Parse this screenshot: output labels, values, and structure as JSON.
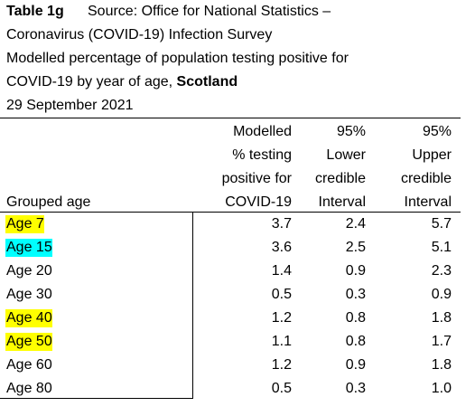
{
  "header": {
    "table_label": "Table 1g",
    "source": "Source: Office for National Statistics –",
    "survey": "Coronavirus (COVID-19) Infection Survey",
    "description_1": "Modelled percentage of population testing positive for",
    "description_2": "COVID-19 by year of age,",
    "region": "Scotland",
    "date": "29 September 2021"
  },
  "table": {
    "columns": [
      [
        "Grouped age"
      ],
      [
        "Modelled",
        "% testing",
        "positive for",
        "COVID-19"
      ],
      [
        "95%",
        "Lower",
        "credible",
        "Interval"
      ],
      [
        "95%",
        "Upper",
        "credible",
        "Interval"
      ]
    ],
    "rows": [
      {
        "label": "Age 7",
        "highlight": "#ffff00",
        "values": [
          "3.7",
          "2.4",
          "5.7"
        ]
      },
      {
        "label": "Age 15",
        "highlight": "#00ffff",
        "values": [
          "3.6",
          "2.5",
          "5.1"
        ]
      },
      {
        "label": "Age 20",
        "values": [
          "1.4",
          "0.9",
          "2.3"
        ]
      },
      {
        "label": "Age 30",
        "values": [
          "0.5",
          "0.3",
          "0.9"
        ]
      },
      {
        "label": "Age 40",
        "highlight": "#ffff00",
        "values": [
          "1.2",
          "0.8",
          "1.8"
        ]
      },
      {
        "label": "Age 50",
        "highlight": "#ffff00",
        "values": [
          "1.1",
          "0.8",
          "1.7"
        ]
      },
      {
        "label": "Age 60",
        "values": [
          "1.2",
          "0.9",
          "1.8"
        ]
      },
      {
        "label": "Age 80",
        "values": [
          "0.5",
          "0.3",
          "1.0"
        ]
      }
    ]
  }
}
